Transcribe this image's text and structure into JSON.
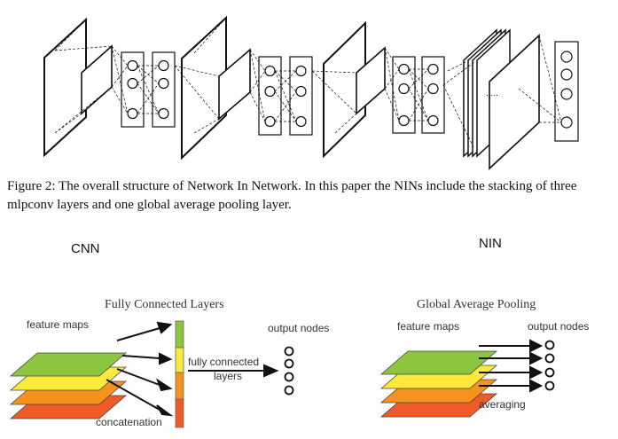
{
  "figure": {
    "caption": "Figure 2: The overall structure of Network In Network. In this paper the NINs include the stacking of three mlpconv layers and one global average pooling layer."
  },
  "cnn": {
    "heading": "CNN",
    "title": "Fully Connected Layers",
    "feature_maps_label": "feature maps",
    "output_nodes_label": "output nodes",
    "arrow_label_line1": "fully connected",
    "arrow_label_line2": "layers",
    "concatenation_label": "concatenation"
  },
  "nin": {
    "heading": "NIN",
    "title": "Global Average Pooling",
    "feature_maps_label": "feature maps",
    "output_nodes_label": "output nodes",
    "averaging_label": "averaging"
  },
  "colors": {
    "green": "#8cc63f",
    "yellow": "#fbe93b",
    "orange": "#f6921e",
    "red": "#f05a28",
    "line": "#111111"
  }
}
